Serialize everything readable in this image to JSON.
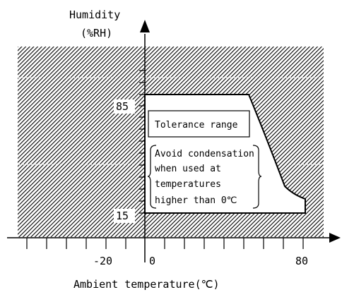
{
  "diagram": {
    "y_axis_label_line1": "Humidity",
    "y_axis_label_line2": "(%RH)",
    "x_axis_label": "Ambient temperature(℃)",
    "y_tick_labels": [
      "85",
      "15"
    ],
    "x_tick_labels": [
      "-20",
      "0",
      "80"
    ],
    "tolerance_label": "Tolerance range",
    "note_lines": [
      "Avoid condensation",
      "when used at",
      "temperatures",
      "higher than 0℃"
    ],
    "humidity_range": [
      15,
      85
    ],
    "temperature_max": 80
  }
}
